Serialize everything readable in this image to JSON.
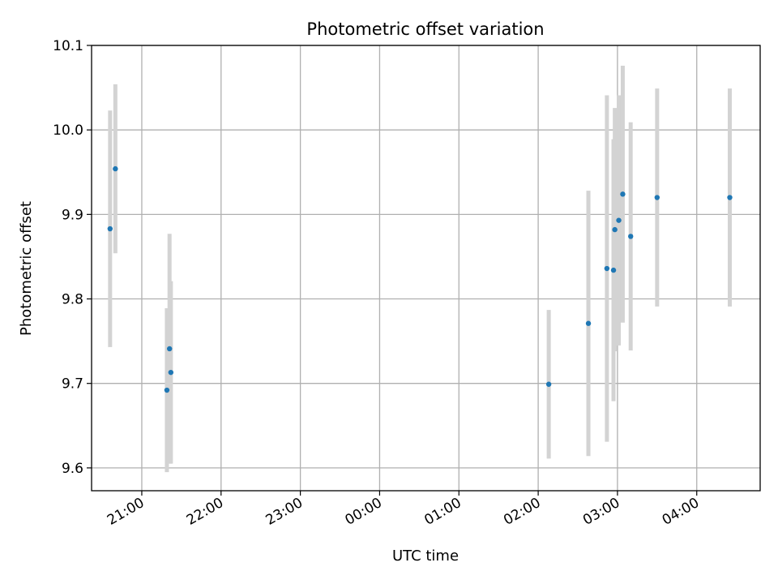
{
  "chart_data": {
    "type": "scatter",
    "title": "Photometric offset variation",
    "xlabel": "UTC time",
    "ylabel": "Photometric offset",
    "x_ticks": [
      "21:00",
      "22:00",
      "23:00",
      "00:00",
      "01:00",
      "02:00",
      "03:00",
      "04:00"
    ],
    "y_ticks": [
      "9.6",
      "9.7",
      "9.8",
      "9.9",
      "10.0",
      "10.1"
    ],
    "ylim": [
      9.573,
      10.1
    ],
    "xlim": [
      "20:22",
      "04:48"
    ],
    "grid": true,
    "point_color": "#1f77b4",
    "errorbar_color": "#d3d3d3",
    "points": [
      {
        "x": "20:36",
        "y": 9.883,
        "err": 0.14
      },
      {
        "x": "20:40",
        "y": 9.954,
        "err": 0.1
      },
      {
        "x": "21:19",
        "y": 9.692,
        "err": 0.097
      },
      {
        "x": "21:21",
        "y": 9.741,
        "err": 0.136
      },
      {
        "x": "21:22",
        "y": 9.713,
        "err": 0.108
      },
      {
        "x": "02:08",
        "y": 9.699,
        "err": 0.088
      },
      {
        "x": "02:38",
        "y": 9.771,
        "err": 0.157
      },
      {
        "x": "02:52",
        "y": 9.836,
        "err": 0.205
      },
      {
        "x": "02:57",
        "y": 9.834,
        "err": 0.155
      },
      {
        "x": "02:58",
        "y": 9.882,
        "err": 0.144
      },
      {
        "x": "03:01",
        "y": 9.893,
        "err": 0.148
      },
      {
        "x": "03:04",
        "y": 9.924,
        "err": 0.152
      },
      {
        "x": "03:10",
        "y": 9.874,
        "err": 0.135
      },
      {
        "x": "03:30",
        "y": 9.92,
        "err": 0.129
      },
      {
        "x": "04:25",
        "y": 9.92,
        "err": 0.129
      }
    ]
  }
}
